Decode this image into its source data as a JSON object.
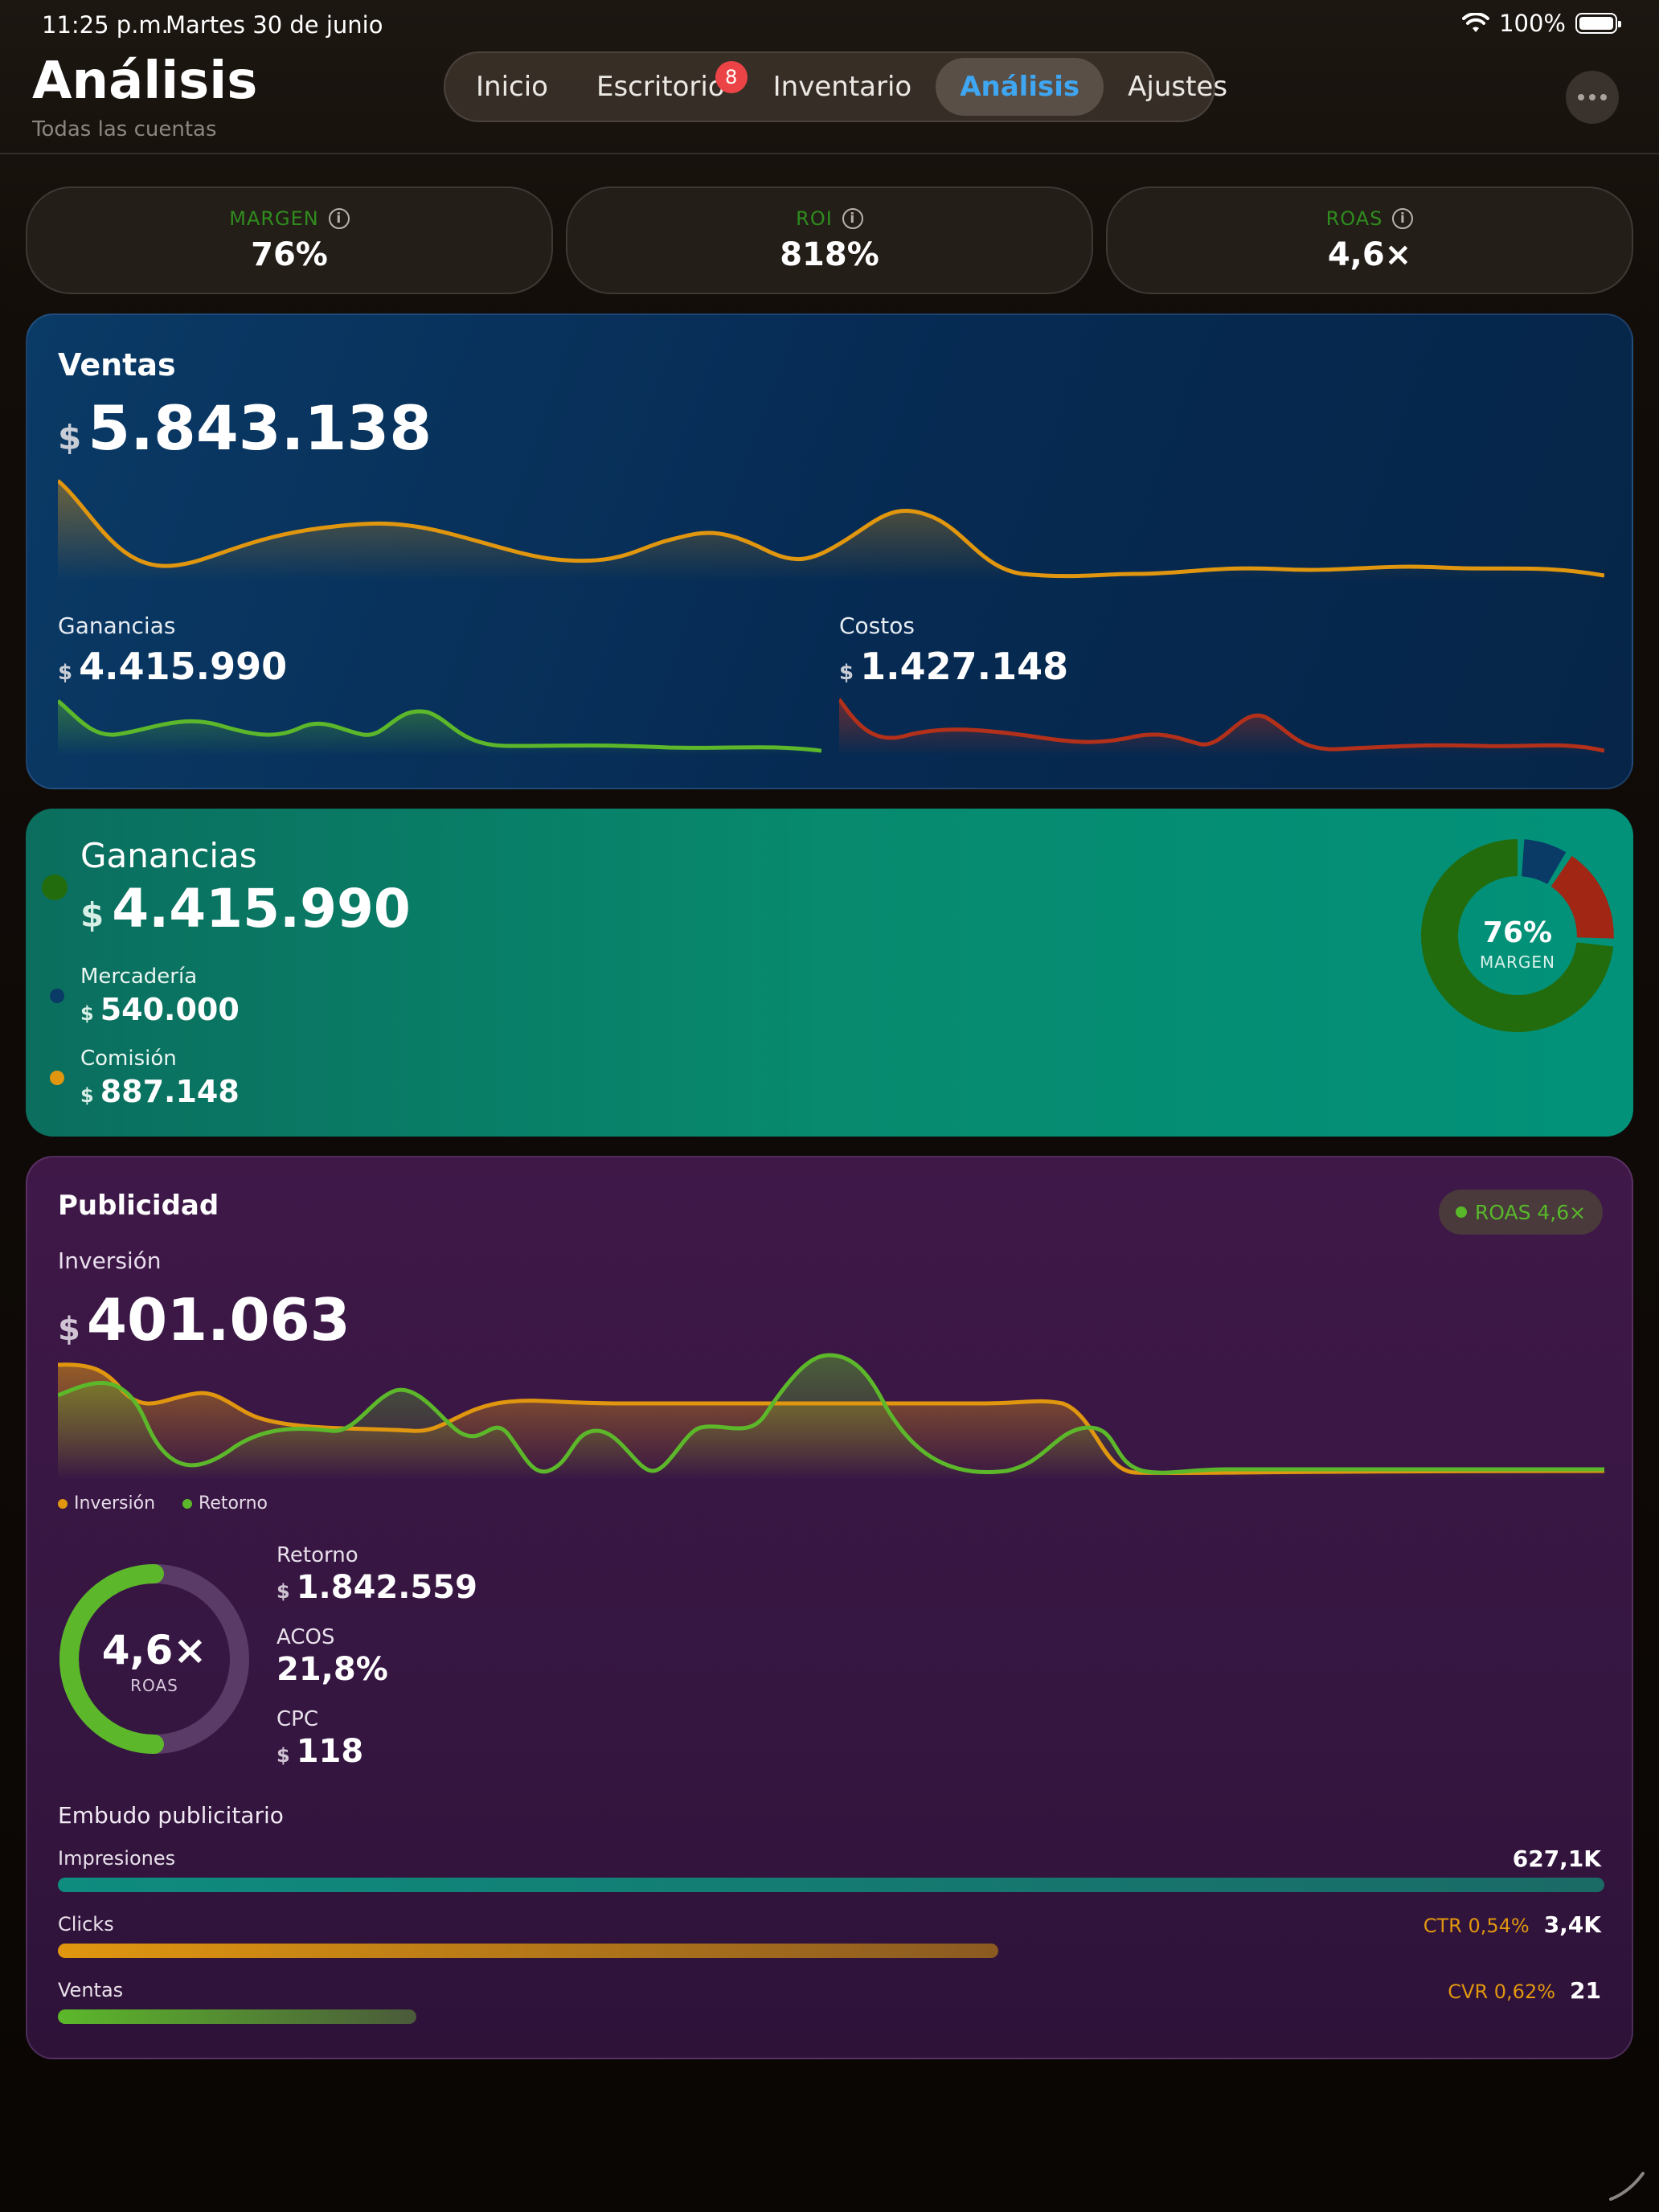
{
  "status_bar": {
    "time": "11:25 p.m.",
    "date": "Martes 30 de junio",
    "battery": "100%"
  },
  "header": {
    "title": "Análisis",
    "subtitle": "Todas las cuentas",
    "tabs": [
      {
        "label": "Inicio"
      },
      {
        "label": "Escritorio",
        "badge": "8"
      },
      {
        "label": "Inventario"
      },
      {
        "label": "Análisis",
        "active": true
      },
      {
        "label": "Ajustes"
      }
    ],
    "more_icon": "ellipsis-icon"
  },
  "metrics": [
    {
      "label": "MARGEN",
      "value": "76%"
    },
    {
      "label": "ROI",
      "value": "818%"
    },
    {
      "label": "ROAS",
      "value": "4,6×"
    }
  ],
  "ventas": {
    "title": "Ventas",
    "currency": "$",
    "total": "5.843.138",
    "ganancias_label": "Ganancias",
    "ganancias_value": "4.415.990",
    "costos_label": "Costos",
    "costos_value": "1.427.148",
    "colors": {
      "ventas": "#e0960f",
      "ganancias": "#5cb82a",
      "costos": "#b3301a"
    }
  },
  "ganancias": {
    "title": "Ganancias",
    "currency": "$",
    "total": "4.415.990",
    "items": [
      {
        "label": "Mercadería",
        "value": "540.000",
        "color": "#0a3a66"
      },
      {
        "label": "Comisión",
        "value": "887.148",
        "color": "#e0960f"
      }
    ],
    "donut_value": "76%",
    "donut_label": "MARGEN",
    "donut_fraction": 0.76,
    "colors": {
      "ganancias": "#236c0e",
      "mercaderia": "#0a3a66",
      "comision": "#a12613"
    }
  },
  "publicidad": {
    "title": "Publicidad",
    "roas_pill": "ROAS 4,6×",
    "inversion_label": "Inversión",
    "currency": "$",
    "inversion_value": "401.063",
    "legend": [
      {
        "label": "Inversión",
        "color": "#e0960f"
      },
      {
        "label": "Retorno",
        "color": "#5cb82a"
      }
    ],
    "roas_value": "4,6×",
    "roas_label": "ROAS",
    "roas_fraction": 0.5,
    "stats": [
      {
        "label": "Retorno",
        "currency": "$",
        "value": "1.842.559"
      },
      {
        "label": "ACOS",
        "currency": "",
        "value": "21,8%"
      },
      {
        "label": "CPC",
        "currency": "$",
        "value": "118"
      }
    ],
    "funnel_title": "Embudo publicitario",
    "funnel": [
      {
        "label": "Impresiones",
        "rate": "",
        "value": "627,1K",
        "fraction": 1.0,
        "color": "#0e8c7e"
      },
      {
        "label": "Clicks",
        "rate": "CTR 0,54%",
        "value": "3,4K",
        "fraction": 0.608,
        "color": "#e0960f"
      },
      {
        "label": "Ventas",
        "rate": "CVR 0,62%",
        "value": "21",
        "fraction": 0.232,
        "color": "#5cb82a"
      }
    ]
  }
}
